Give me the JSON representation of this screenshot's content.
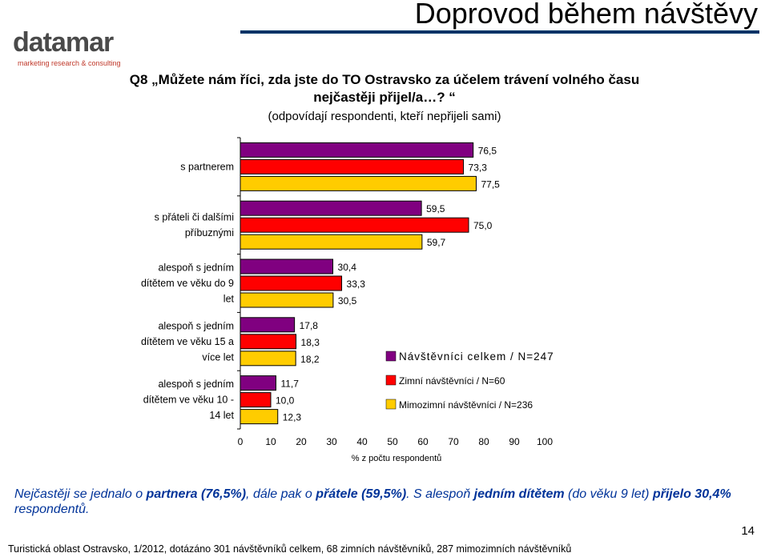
{
  "header": {
    "title": "Doprovod během návštěvy",
    "logo_text": "datamar",
    "logo_tagline": "marketing research & consulting"
  },
  "question": {
    "line1": "Q8 „Můžete nám říci, zda jste do TO Ostravsko za účelem trávení volného času",
    "line2": "nejčastěji přijel/a…? “",
    "note": "(odpovídají respondenti, kteří nepřijeli sami)"
  },
  "chart_data": {
    "type": "bar",
    "orientation": "horizontal",
    "categories": [
      [
        "s partnerem"
      ],
      [
        "s přáteli či dalšími",
        "příbuznými"
      ],
      [
        "alespoň s jedním",
        "dítětem ve věku do 9",
        "let"
      ],
      [
        "alespoň s jedním",
        "dítětem ve věku 15 a",
        "více let"
      ],
      [
        "alespoň s jedním",
        "dítětem ve věku 10 -",
        "14 let"
      ]
    ],
    "series": [
      {
        "name": "Návštěvníci celkem / N=247",
        "color": "#800080",
        "values": [
          76.5,
          59.5,
          30.4,
          17.8,
          11.7
        ],
        "labels": [
          "76,5",
          "59,5",
          "30,4",
          "17,8",
          "11,7"
        ]
      },
      {
        "name": "Zimní návštěvníci / N=60",
        "color": "#ff0000",
        "values": [
          73.3,
          75.0,
          33.3,
          18.3,
          10.0
        ],
        "labels": [
          "73,3",
          "75,0",
          "33,3",
          "18,3",
          "10,0"
        ]
      },
      {
        "name": "Mimozimní návštěvníci / N=236",
        "color": "#ffcc00",
        "values": [
          77.5,
          59.7,
          30.5,
          18.2,
          12.3
        ],
        "labels": [
          "77,5",
          "59,7",
          "30,5",
          "18,2",
          "12,3"
        ]
      }
    ],
    "xlim": [
      0,
      100
    ],
    "xticks": [
      "0",
      "10",
      "20",
      "30",
      "40",
      "50",
      "60",
      "70",
      "80",
      "90",
      "100"
    ],
    "xlabel": "% z počtu respondentů",
    "legend_position": "right"
  },
  "summary": {
    "p1": "Nejčastěji se jednalo o ",
    "b1": "partnera (76,5%)",
    "p2": ", dále pak o ",
    "b2": "přátele (59,5%)",
    "p3": ". S alespoň ",
    "b3": "jedním dítětem",
    "p4": " (do věku 9 let) ",
    "b4": "přijelo 30,4%",
    "p5": " respondentů."
  },
  "page_number": "14",
  "footer": "Turistická oblast Ostravsko, 1/2012, dotázáno 301 návštěvníků celkem, 68 zimních návštěvníků, 287 mimozimních návštěvníků"
}
